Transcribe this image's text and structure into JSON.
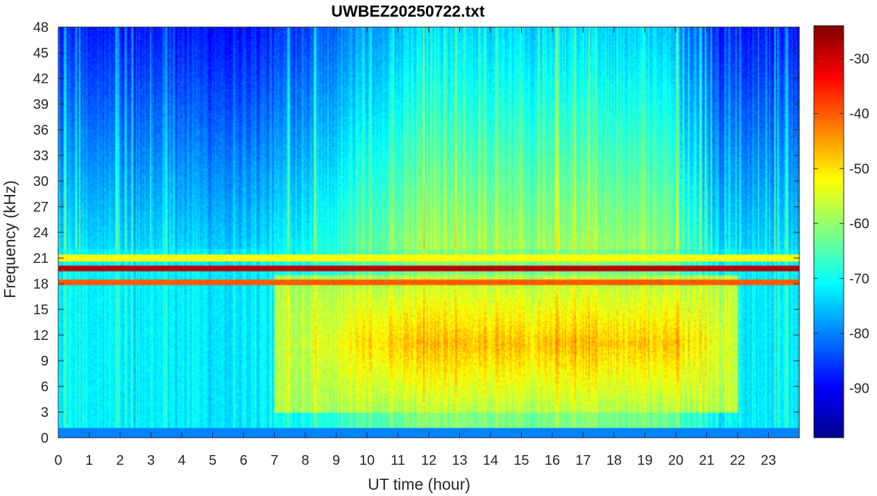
{
  "chart_data": {
    "type": "heatmap",
    "title": "UWBEZ20250722.txt",
    "xlabel": "UT time (hour)",
    "ylabel": "Frequency (kHz)",
    "xlim": [
      0,
      24
    ],
    "ylim": [
      0,
      48
    ],
    "x_ticks": [
      0,
      1,
      2,
      3,
      4,
      5,
      6,
      7,
      8,
      9,
      10,
      11,
      12,
      13,
      14,
      15,
      16,
      17,
      18,
      19,
      20,
      21,
      22,
      23
    ],
    "y_ticks": [
      0,
      3,
      6,
      9,
      12,
      15,
      18,
      21,
      24,
      27,
      30,
      33,
      36,
      39,
      42,
      45,
      48
    ],
    "colorbar": {
      "colormap": "jet",
      "range": [
        -99,
        -24
      ],
      "ticks": [
        -90,
        -80,
        -70,
        -60,
        -50,
        -40,
        -30
      ]
    },
    "features": [
      {
        "label": "strong narrowband transmitter",
        "freq_khz": 19.8,
        "level_db": -28,
        "start_hour": 0,
        "end_hour": 24
      },
      {
        "label": "narrowband line",
        "freq_khz": 18.2,
        "level_db": -40,
        "start_hour": 0,
        "end_hour": 24
      },
      {
        "label": "narrowband line",
        "freq_khz": 21.0,
        "level_db": -52,
        "start_hour": 0,
        "end_hour": 24
      },
      {
        "label": "broadband emission peak",
        "freq_khz_range": [
          6,
          16
        ],
        "level_db": -48,
        "hour_range": [
          8,
          21
        ]
      }
    ]
  }
}
